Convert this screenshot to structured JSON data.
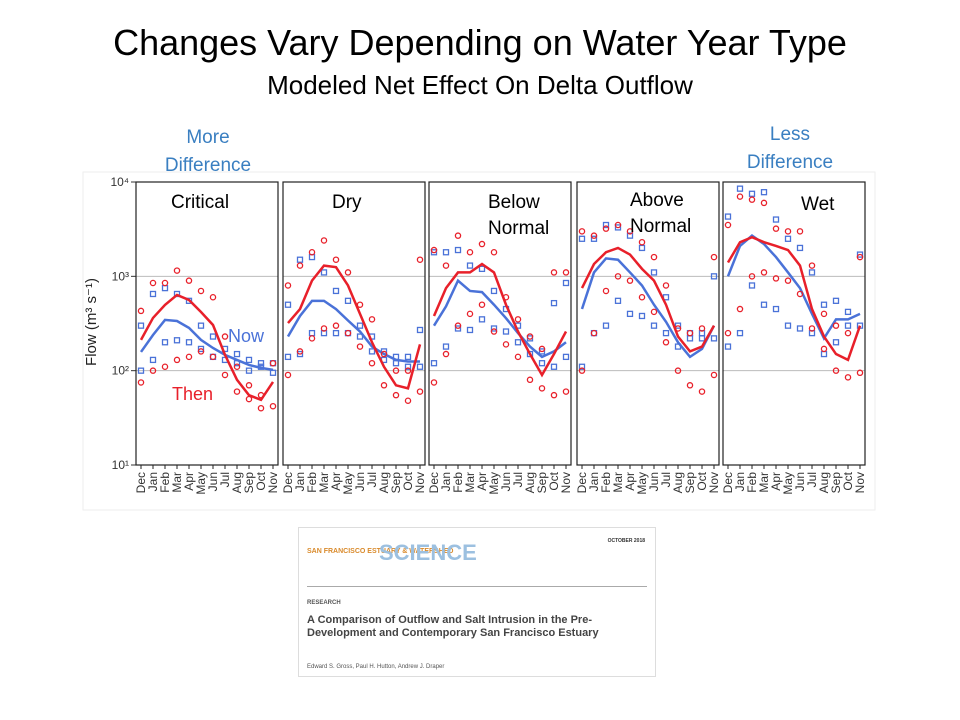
{
  "title": "Changes Vary Depending on Water Year Type",
  "subtitle": "Modeled Net Effect On Delta Outflow",
  "chart_data": {
    "type": "line",
    "ylabel": "Flow (m³ s⁻¹)",
    "log_scale": true,
    "grid": true,
    "ylim": [
      10,
      10000
    ],
    "yticks": [
      {
        "value": 10,
        "label": "10¹"
      },
      {
        "value": 100,
        "label": "10²"
      },
      {
        "value": 1000,
        "label": "10³"
      },
      {
        "value": 10000,
        "label": "10⁴"
      }
    ],
    "categories": [
      "Dec",
      "Jan",
      "Feb",
      "Mar",
      "Apr",
      "May",
      "Jun",
      "Jul",
      "Aug",
      "Sep",
      "Oct",
      "Nov"
    ],
    "series": [
      {
        "name": "Now",
        "color": "#4a72d8",
        "marker": "square"
      },
      {
        "name": "Then",
        "color": "#e8202a",
        "marker": "circle"
      }
    ],
    "annotations": {
      "more": "More Difference",
      "less": "Less Difference"
    },
    "panels": [
      {
        "title": "Critical",
        "series": [
          {
            "values": [
              158,
              239,
              345,
              336,
              284,
              212,
              174,
              147,
              130,
              115,
              107,
              102
            ],
            "high": [
              300,
              650,
              750,
              650,
              550,
              300,
              230,
              170,
              150,
              130,
              120,
              120
            ],
            "low": [
              100,
              130,
              200,
              210,
              200,
              170,
              140,
              130,
              120,
              100,
              110,
              95
            ]
          },
          {
            "values": [
              212,
              362,
              498,
              635,
              562,
              419,
              305,
              147,
              80,
              55,
              49,
              76
            ],
            "high": [
              430,
              850,
              850,
              1150,
              900,
              700,
              600,
              230,
              110,
              70,
              55,
              120
            ],
            "low": [
              75,
              100,
              110,
              130,
              140,
              160,
              140,
              90,
              60,
              50,
              40,
              42
            ]
          }
        ]
      },
      {
        "title": "Dry",
        "series": [
          {
            "values": [
              230,
              380,
              550,
              550,
              450,
              340,
              260,
              180,
              150,
              130,
              125,
              125
            ],
            "high": [
              500,
              1500,
              1600,
              1100,
              700,
              550,
              300,
              230,
              160,
              140,
              140,
              270
            ],
            "low": [
              140,
              150,
              250,
              250,
              250,
              250,
              230,
              160,
              130,
              120,
              110,
              110
            ]
          },
          {
            "values": [
              320,
              450,
              900,
              1300,
              1250,
              800,
              400,
              200,
              110,
              70,
              65,
              190
            ],
            "high": [
              800,
              1300,
              1800,
              2400,
              1500,
              1100,
              500,
              350,
              150,
              100,
              100,
              1500
            ],
            "low": [
              90,
              160,
              220,
              280,
              300,
              250,
              180,
              120,
              70,
              55,
              48,
              60
            ]
          }
        ]
      },
      {
        "title": "Below Normal",
        "series": [
          {
            "values": [
              300,
              480,
              900,
              700,
              680,
              500,
              360,
              250,
              180,
              140,
              160,
              200
            ],
            "high": [
              1800,
              1800,
              1900,
              1300,
              1200,
              700,
              450,
              300,
              220,
              160,
              520,
              850
            ],
            "low": [
              120,
              180,
              280,
              270,
              350,
              280,
              260,
              200,
              150,
              120,
              110,
              140
            ]
          },
          {
            "values": [
              380,
              750,
              1100,
              1100,
              1350,
              1100,
              500,
              260,
              150,
              90,
              150,
              260
            ],
            "high": [
              1900,
              1300,
              2700,
              1800,
              2200,
              1800,
              600,
              350,
              230,
              170,
              1100,
              1100
            ],
            "low": [
              75,
              150,
              300,
              400,
              500,
              260,
              190,
              140,
              80,
              65,
              55,
              60
            ]
          }
        ]
      },
      {
        "title": "Above Normal",
        "series": [
          {
            "values": [
              450,
              1100,
              1550,
              1500,
              1100,
              800,
              500,
              330,
              200,
              140,
              170,
              300
            ],
            "high": [
              2500,
              2500,
              3500,
              3300,
              2700,
              2000,
              1100,
              600,
              300,
              250,
              250,
              1000
            ],
            "low": [
              110,
              250,
              300,
              550,
              400,
              380,
              300,
              250,
              180,
              220,
              220,
              220
            ]
          },
          {
            "values": [
              750,
              1350,
              1800,
              2000,
              1700,
              1200,
              900,
              500,
              230,
              160,
              180,
              300
            ],
            "high": [
              3000,
              2700,
              3200,
              3500,
              3000,
              2300,
              1600,
              800,
              280,
              250,
              280,
              1600
            ],
            "low": [
              100,
              250,
              700,
              1000,
              900,
              600,
              420,
              200,
              100,
              70,
              60,
              90
            ]
          }
        ]
      },
      {
        "title": "Wet",
        "series": [
          {
            "values": [
              1000,
              2100,
              2700,
              2200,
              1600,
              1100,
              750,
              400,
              220,
              350,
              350,
              400
            ],
            "high": [
              4300,
              8500,
              7500,
              7800,
              4000,
              2500,
              2000,
              1100,
              500,
              550,
              420,
              1700
            ],
            "low": [
              180,
              250,
              800,
              500,
              450,
              300,
              280,
              250,
              150,
              200,
              300,
              300
            ]
          },
          {
            "values": [
              1400,
              2300,
              2600,
              2300,
              2100,
              1900,
              1300,
              450,
              230,
              150,
              130,
              300
            ],
            "high": [
              3500,
              7000,
              6500,
              6000,
              3200,
              3000,
              3000,
              1300,
              400,
              300,
              250,
              1600
            ],
            "low": [
              250,
              450,
              1000,
              1100,
              950,
              900,
              650,
              280,
              170,
              100,
              85,
              95
            ]
          }
        ]
      }
    ]
  },
  "paper": {
    "journal": "SAN FRANCISCO ESTUARY & WATERSHED",
    "logo": "SCIENCE",
    "date": "OCTOBER 2018",
    "section": "RESEARCH",
    "title": "A Comparison of Outflow and Salt Intrusion in the Pre-Development and Contemporary San Francisco Estuary",
    "authors": "Edward S. Gross, Paul H. Hutton, Andrew J. Draper"
  }
}
